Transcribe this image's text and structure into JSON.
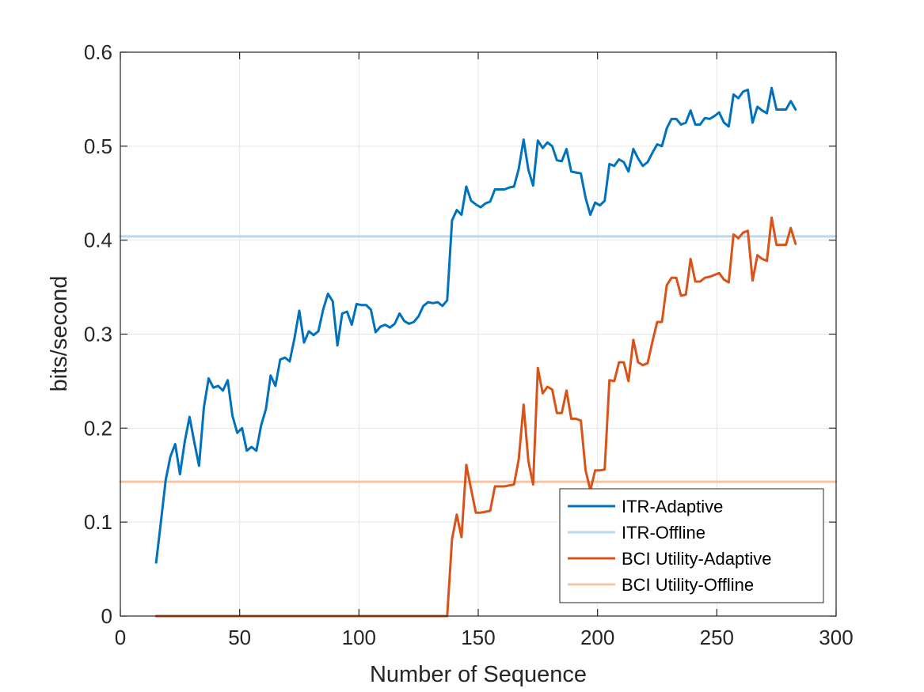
{
  "chart_data": {
    "type": "line",
    "xlabel": "Number of Sequence",
    "ylabel": "bits/second",
    "xlim": [
      0,
      300
    ],
    "ylim": [
      0,
      0.6
    ],
    "x_ticks": [
      0,
      50,
      100,
      150,
      200,
      250,
      300
    ],
    "y_ticks": [
      0,
      0.1,
      0.2,
      0.3,
      0.4,
      0.5,
      0.6
    ],
    "x_tick_labels": [
      "0",
      "50",
      "100",
      "150",
      "200",
      "250",
      "300"
    ],
    "y_tick_labels": [
      "0",
      "0.1",
      "0.2",
      "0.3",
      "0.4",
      "0.5",
      "0.6"
    ],
    "grid": true,
    "legend_position": "bottom-right",
    "series": [
      {
        "name": "ITR-Adaptive",
        "color": "#0072bd",
        "x": [
          15,
          17,
          19,
          21,
          23,
          25,
          27,
          29,
          31,
          33,
          35,
          37,
          39,
          41,
          43,
          45,
          47,
          49,
          51,
          53,
          55,
          57,
          59,
          61,
          63,
          65,
          67,
          69,
          71,
          73,
          75,
          77,
          79,
          81,
          83,
          85,
          87,
          89,
          91,
          93,
          95,
          97,
          99,
          101,
          103,
          105,
          107,
          109,
          111,
          113,
          115,
          117,
          119,
          121,
          123,
          125,
          127,
          129,
          131,
          133,
          135,
          137,
          139,
          141,
          143,
          145,
          147,
          149,
          151,
          153,
          155,
          157,
          159,
          161,
          163,
          165,
          167,
          169,
          171,
          173,
          175,
          177,
          179,
          181,
          183,
          185,
          187,
          189,
          191,
          193,
          195,
          197,
          199,
          201,
          203,
          205,
          207,
          209,
          211,
          213,
          215,
          217,
          219,
          221,
          223,
          225,
          227,
          229,
          231,
          233,
          235,
          237,
          239,
          241,
          243,
          245,
          247,
          249,
          251,
          253,
          255,
          257,
          259,
          261,
          263,
          265,
          267,
          269,
          271,
          273,
          275,
          277,
          279,
          281,
          283
        ],
        "values": [
          0.057,
          0.1,
          0.145,
          0.17,
          0.183,
          0.151,
          0.186,
          0.212,
          0.185,
          0.16,
          0.222,
          0.253,
          0.243,
          0.245,
          0.24,
          0.251,
          0.213,
          0.195,
          0.2,
          0.176,
          0.18,
          0.176,
          0.203,
          0.22,
          0.256,
          0.245,
          0.273,
          0.275,
          0.271,
          0.296,
          0.325,
          0.291,
          0.303,
          0.299,
          0.303,
          0.326,
          0.343,
          0.335,
          0.288,
          0.322,
          0.324,
          0.31,
          0.332,
          0.331,
          0.331,
          0.326,
          0.302,
          0.308,
          0.31,
          0.307,
          0.311,
          0.322,
          0.314,
          0.311,
          0.313,
          0.319,
          0.33,
          0.334,
          0.333,
          0.334,
          0.33,
          0.336,
          0.421,
          0.432,
          0.427,
          0.457,
          0.442,
          0.438,
          0.435,
          0.439,
          0.441,
          0.454,
          0.454,
          0.454,
          0.456,
          0.457,
          0.476,
          0.507,
          0.475,
          0.458,
          0.506,
          0.498,
          0.504,
          0.5,
          0.485,
          0.484,
          0.497,
          0.473,
          0.472,
          0.471,
          0.445,
          0.427,
          0.44,
          0.437,
          0.442,
          0.481,
          0.479,
          0.486,
          0.483,
          0.473,
          0.497,
          0.487,
          0.479,
          0.483,
          0.493,
          0.502,
          0.5,
          0.519,
          0.529,
          0.529,
          0.523,
          0.525,
          0.538,
          0.523,
          0.523,
          0.53,
          0.529,
          0.532,
          0.536,
          0.525,
          0.521,
          0.555,
          0.551,
          0.558,
          0.56,
          0.525,
          0.542,
          0.538,
          0.535,
          0.562,
          0.539,
          0.539,
          0.539,
          0.548,
          0.539
        ]
      },
      {
        "name": "ITR-Offline",
        "color": "#b7d8ef",
        "x": [
          0,
          300
        ],
        "values": [
          0.404,
          0.404
        ]
      },
      {
        "name": "BCI Utility-Adaptive",
        "color": "#d95319",
        "x": [
          15,
          135,
          137,
          139,
          141,
          143,
          145,
          147,
          149,
          151,
          153,
          155,
          157,
          159,
          161,
          163,
          165,
          167,
          169,
          171,
          173,
          175,
          177,
          179,
          181,
          183,
          185,
          187,
          189,
          191,
          193,
          195,
          197,
          199,
          201,
          203,
          205,
          207,
          209,
          211,
          213,
          215,
          217,
          219,
          221,
          223,
          225,
          227,
          229,
          231,
          233,
          235,
          237,
          239,
          241,
          243,
          245,
          247,
          249,
          251,
          253,
          255,
          257,
          259,
          261,
          263,
          265,
          267,
          269,
          271,
          273,
          275,
          277,
          279,
          281,
          283
        ],
        "values": [
          0,
          0,
          0,
          0.082,
          0.108,
          0.084,
          0.161,
          0.135,
          0.11,
          0.11,
          0.111,
          0.112,
          0.138,
          0.138,
          0.138,
          0.139,
          0.14,
          0.167,
          0.225,
          0.165,
          0.14,
          0.264,
          0.237,
          0.244,
          0.241,
          0.216,
          0.216,
          0.24,
          0.21,
          0.21,
          0.208,
          0.155,
          0.134,
          0.155,
          0.155,
          0.156,
          0.251,
          0.25,
          0.27,
          0.27,
          0.25,
          0.294,
          0.27,
          0.267,
          0.269,
          0.292,
          0.313,
          0.313,
          0.352,
          0.36,
          0.36,
          0.341,
          0.342,
          0.38,
          0.356,
          0.356,
          0.36,
          0.361,
          0.363,
          0.365,
          0.358,
          0.355,
          0.406,
          0.402,
          0.408,
          0.41,
          0.357,
          0.384,
          0.38,
          0.378,
          0.424,
          0.395,
          0.395,
          0.395,
          0.413,
          0.396
        ]
      },
      {
        "name": "BCI Utility-Offline",
        "color": "#f7c4a3",
        "x": [
          0,
          300
        ],
        "values": [
          0.143,
          0.143
        ]
      }
    ]
  }
}
